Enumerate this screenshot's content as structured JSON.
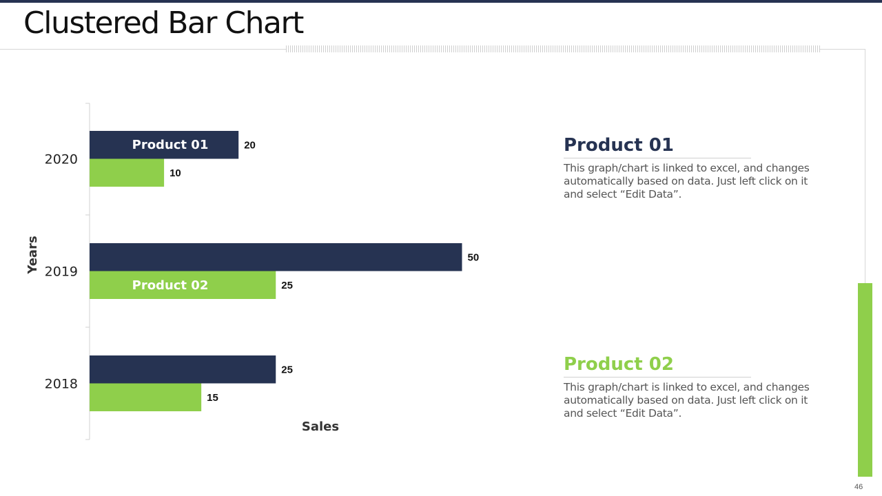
{
  "title": "Clustered Bar Chart",
  "page_number": "46",
  "colors": {
    "navy": "#263352",
    "green": "#8fcf4b",
    "accent_bar": "#8fcf4b"
  },
  "chart_data": {
    "type": "bar",
    "orientation": "horizontal",
    "categories": [
      "2020",
      "2019",
      "2018"
    ],
    "series": [
      {
        "name": "Product 01",
        "color": "#263352",
        "values": [
          20,
          50,
          25
        ]
      },
      {
        "name": "Product 02",
        "color": "#8fcf4b",
        "values": [
          10,
          25,
          15
        ]
      }
    ],
    "xlabel": "Sales",
    "ylabel": "Years",
    "xlim": [
      0,
      55
    ],
    "grid": false,
    "legend": "inside-bars"
  },
  "panels": [
    {
      "title": "Product 01",
      "color": "#263352",
      "text": "This graph/chart is linked to excel, and changes automatically based on data. Just left click on it and select “Edit Data”."
    },
    {
      "title": "Product 02",
      "color": "#8fcf4b",
      "text": "This graph/chart is linked to excel, and changes automatically based on data. Just left click on it and select “Edit Data”."
    }
  ]
}
